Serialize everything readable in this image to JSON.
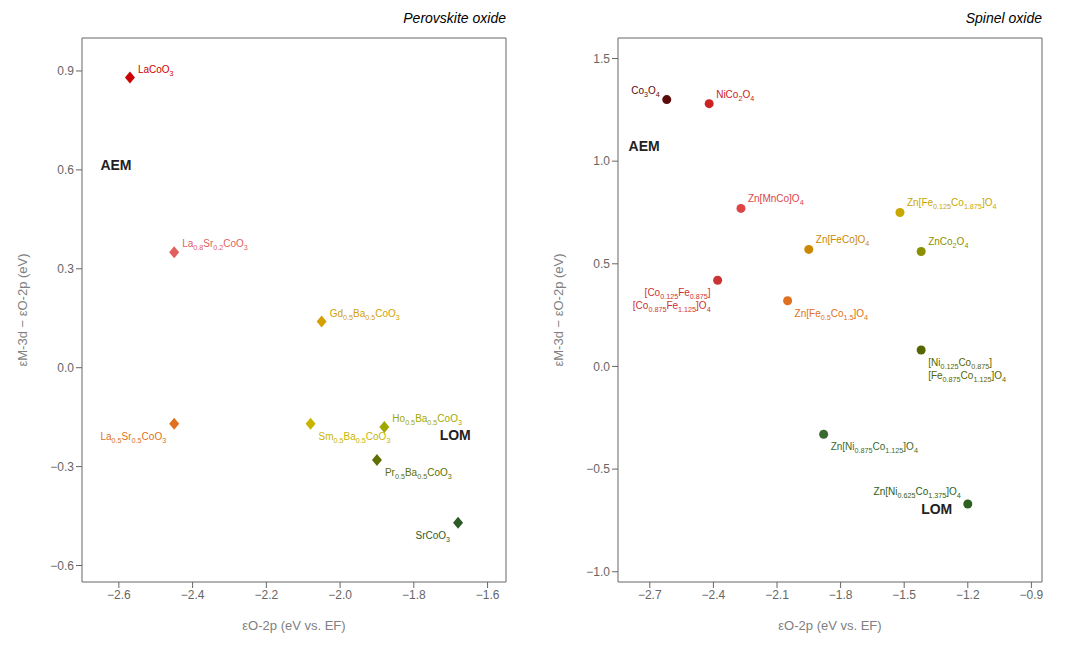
{
  "chart_data": [
    {
      "type": "scatter",
      "title": "Perovskite oxide",
      "x_label": "εO-2p (eV vs. EF)",
      "y_label": "εM-3d − εO-2p (eV)",
      "marker": "diamond",
      "xlim": [
        -2.7,
        -1.55
      ],
      "ylim": [
        -0.65,
        1.0
      ],
      "xticks": [
        {
          "value": -2.6,
          "label": "−2.6"
        },
        {
          "value": -2.4,
          "label": "−2.4"
        },
        {
          "value": -2.2,
          "label": "−2.2"
        },
        {
          "value": -2.0,
          "label": "−2.0"
        },
        {
          "value": -1.8,
          "label": "−1.8"
        },
        {
          "value": -1.6,
          "label": "−1.6"
        }
      ],
      "yticks": [
        {
          "value": -0.6,
          "label": "−0.6"
        },
        {
          "value": -0.3,
          "label": "−0.3"
        },
        {
          "value": 0.0,
          "label": "0.0"
        },
        {
          "value": 0.3,
          "label": "0.3"
        },
        {
          "value": 0.6,
          "label": "0.6"
        },
        {
          "value": 0.9,
          "label": "0.9"
        }
      ],
      "x": [
        -2.57,
        -2.45,
        -2.45,
        -2.05,
        -2.08,
        -1.88,
        -1.9,
        -1.68
      ],
      "values": [
        0.88,
        0.35,
        -0.17,
        0.14,
        -0.17,
        -0.18,
        -0.28,
        -0.47
      ],
      "colors": [
        "#cc0000",
        "#e06060",
        "#e07020",
        "#d4a000",
        "#c8b400",
        "#a0a800",
        "#607000",
        "#2d5a27"
      ],
      "point_labels": [
        "LaCoO3",
        "La0.8Sr0.2CoO3",
        "La0.5Sr0.5CoO3",
        "Gd0.5Ba0.5CoO3",
        "Sm0.5Ba0.5CoO3",
        "Ho0.5Ba0.5CoO3",
        "Pr0.5Ba0.5CoO3",
        "SrCoO3"
      ],
      "annotations": [
        {
          "x": -2.65,
          "y": 0.6,
          "text": "AEM"
        },
        {
          "x": -1.73,
          "y": -0.22,
          "text": "LOM"
        }
      ]
    },
    {
      "type": "scatter",
      "title": "Spinel oxide",
      "x_label": "εO-2p (eV vs. EF)",
      "y_label": "εM-3d − εO-2p (eV)",
      "marker": "circle",
      "xlim": [
        -2.85,
        -0.85
      ],
      "ylim": [
        -1.05,
        1.6
      ],
      "xticks": [
        {
          "value": -2.7,
          "label": "−2.7"
        },
        {
          "value": -2.4,
          "label": "−2.4"
        },
        {
          "value": -2.1,
          "label": "−2.1"
        },
        {
          "value": -1.8,
          "label": "−1.8"
        },
        {
          "value": -1.5,
          "label": "−1.5"
        },
        {
          "value": -1.2,
          "label": "−1.2"
        },
        {
          "value": -0.9,
          "label": "−0.9"
        }
      ],
      "yticks": [
        {
          "value": -1.0,
          "label": "−1.0"
        },
        {
          "value": -0.5,
          "label": "−0.5"
        },
        {
          "value": 0.0,
          "label": "0.0"
        },
        {
          "value": 0.5,
          "label": "0.5"
        },
        {
          "value": 1.0,
          "label": "1.0"
        },
        {
          "value": 1.5,
          "label": "1.5"
        }
      ],
      "x": [
        -2.62,
        -2.42,
        -2.38,
        -2.27,
        -2.05,
        -1.95,
        -1.52,
        -1.42,
        -1.42,
        -1.88,
        -1.2
      ],
      "values": [
        1.3,
        1.28,
        0.42,
        0.77,
        0.32,
        0.57,
        0.75,
        0.56,
        0.08,
        -0.33,
        -0.67
      ],
      "colors": [
        "#5a0a0a",
        "#cc2222",
        "#cc3333",
        "#dd4444",
        "#e07020",
        "#cc8800",
        "#c8a800",
        "#8a9000",
        "#556600",
        "#3a6a30",
        "#2d6020"
      ],
      "point_labels": [
        "Co3O4",
        "NiCo2O4",
        "[Co0.125Fe0.875]\n[Co0.875Fe1.125]O4",
        "Zn[MnCo]O4",
        "Zn[Fe0.5Co1.5]O4",
        "Zn[FeCo]O4",
        "Zn[Fe0.125Co1.875]O4",
        "ZnCo2O4",
        "[Ni0.125Co0.875]\n[Fe0.875Co1.125]O4",
        "Zn[Ni0.875Co1.125]O4",
        "Zn[Ni0.625Co1.375]O4"
      ],
      "annotations": [
        {
          "x": -2.8,
          "y": 1.05,
          "text": "AEM"
        },
        {
          "x": -1.42,
          "y": -0.72,
          "text": "LOM"
        }
      ]
    }
  ]
}
